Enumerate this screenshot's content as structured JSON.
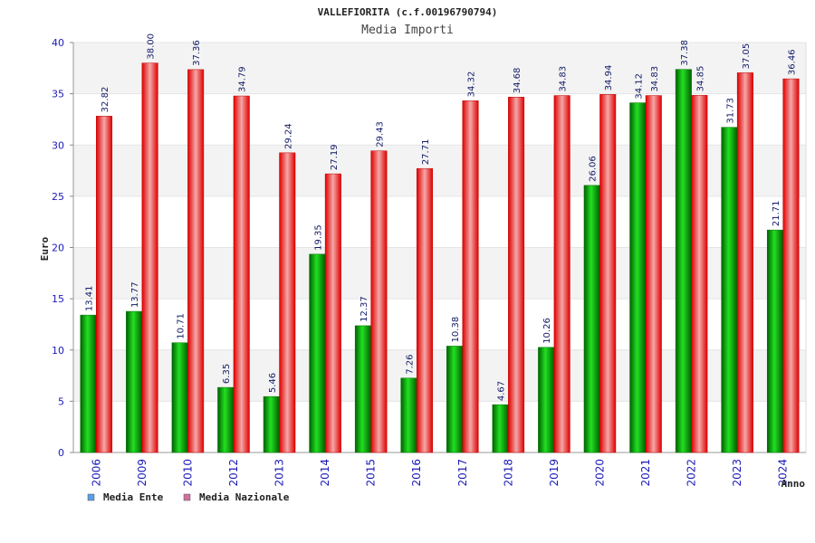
{
  "chart_data": {
    "type": "bar",
    "title": "VALLEFIORITA (c.f.00196790794)",
    "subtitle": "Media Importi",
    "xlabel": "Anno",
    "ylabel": "Euro",
    "ylim": [
      0,
      40
    ],
    "yticks": [
      "0",
      "5",
      "10",
      "15",
      "20",
      "25",
      "30",
      "35",
      "40"
    ],
    "categories": [
      "2006",
      "2009",
      "2010",
      "2012",
      "2013",
      "2014",
      "2015",
      "2016",
      "2017",
      "2018",
      "2019",
      "2020",
      "2021",
      "2022",
      "2023",
      "2024"
    ],
    "series": [
      {
        "name": "Media Ente",
        "color": "#00b000",
        "legend_color": "#5aa0e6",
        "values": [
          13.41,
          13.77,
          10.71,
          6.35,
          5.46,
          19.35,
          12.37,
          7.26,
          10.38,
          4.67,
          10.26,
          26.06,
          34.12,
          37.38,
          31.73,
          21.71
        ],
        "labels": [
          "13.41",
          "13.77",
          "10.71",
          "6.35",
          "5.46",
          "19.35",
          "12.37",
          "7.26",
          "10.38",
          "4.67",
          "10.26",
          "26.06",
          "34.12",
          "37.38",
          "31.73",
          "21.71"
        ]
      },
      {
        "name": "Media Nazionale",
        "color": "#e80000",
        "legend_color": "#d070a0",
        "values": [
          32.82,
          38.0,
          37.36,
          34.79,
          29.24,
          27.19,
          29.43,
          27.71,
          34.32,
          34.68,
          34.83,
          34.94,
          34.83,
          34.85,
          37.05,
          36.46
        ],
        "labels": [
          "32.82",
          "38.00",
          "37.36",
          "34.79",
          "29.24",
          "27.19",
          "29.43",
          "27.71",
          "34.32",
          "34.68",
          "34.83",
          "34.94",
          "34.83",
          "34.85",
          "37.05",
          "36.46"
        ]
      }
    ],
    "grid": true,
    "legend_position": "bottom-left"
  }
}
